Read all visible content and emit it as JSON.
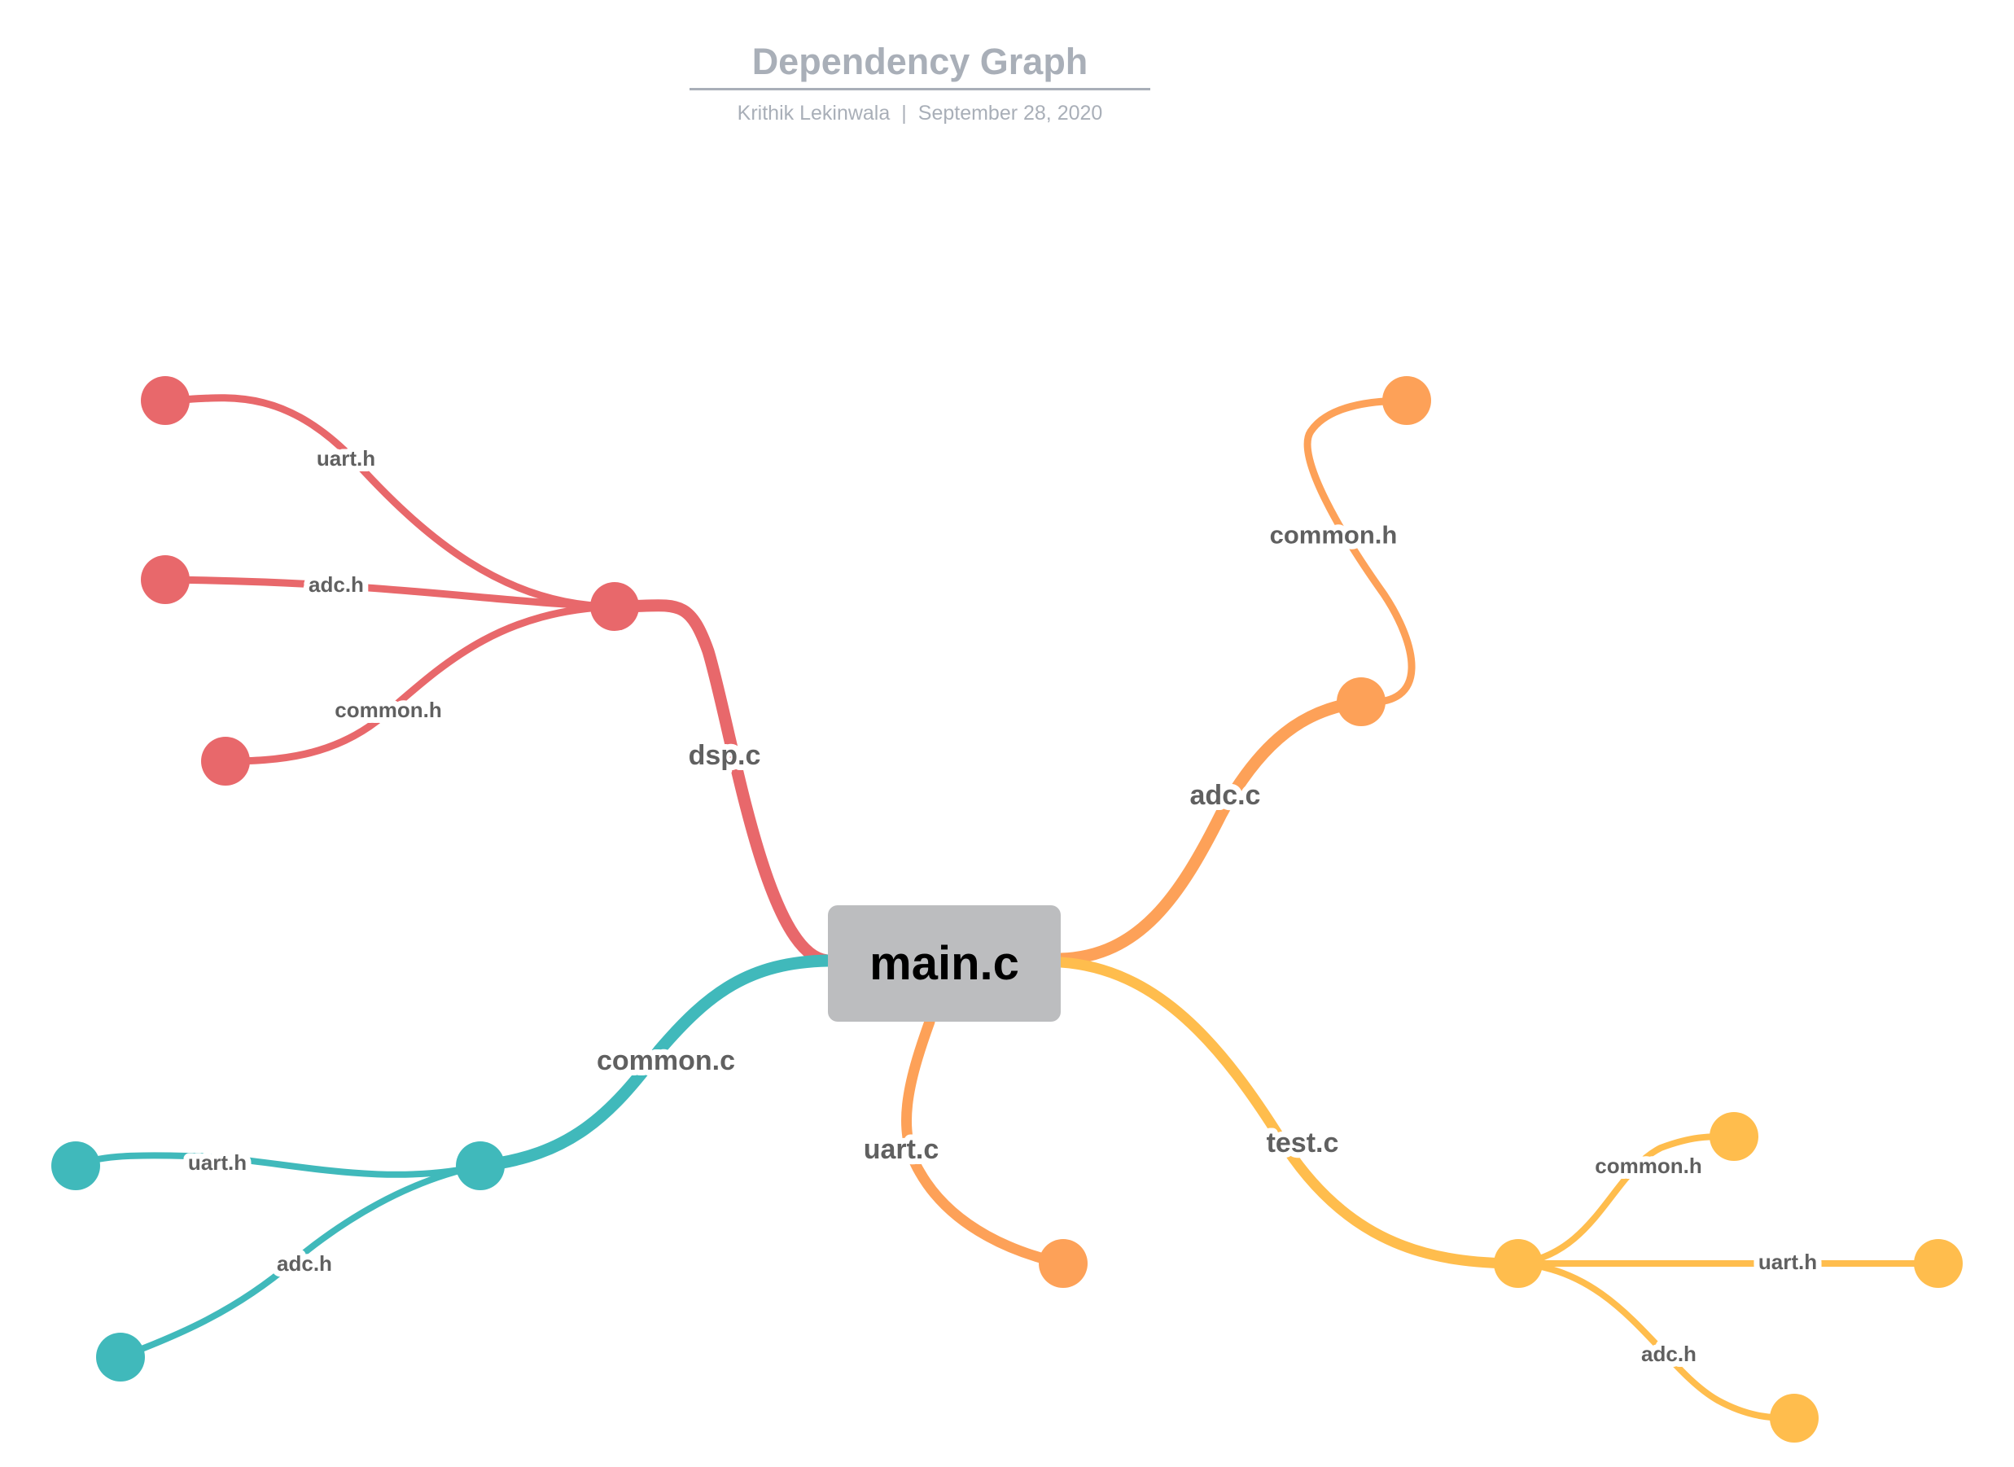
{
  "header": {
    "title": "Dependency Graph",
    "author": "Krithik Lekinwala",
    "separator": "|",
    "date": "September 28, 2020"
  },
  "root": {
    "label": "main.c"
  },
  "colors": {
    "dsp": "#e8686b",
    "adc": "#fda158",
    "uart": "#fda158",
    "test": "#ffbd4d",
    "common": "#40b9bb",
    "label_text": "#606060",
    "root_fill": "#bcbdbf"
  },
  "branches": [
    {
      "id": "dsp",
      "label": "dsp.c",
      "color": "#e8686b",
      "leaves": [
        "uart.h",
        "adc.h",
        "common.h"
      ]
    },
    {
      "id": "adc",
      "label": "adc.c",
      "color": "#fda158",
      "leaves": [
        "common.h"
      ]
    },
    {
      "id": "uart",
      "label": "uart.c",
      "color": "#fda158",
      "leaves": []
    },
    {
      "id": "test",
      "label": "test.c",
      "color": "#ffbd4d",
      "leaves": [
        "common.h",
        "uart.h",
        "adc.h"
      ]
    },
    {
      "id": "common",
      "label": "common.c",
      "color": "#40b9bb",
      "leaves": [
        "uart.h",
        "adc.h"
      ]
    }
  ]
}
